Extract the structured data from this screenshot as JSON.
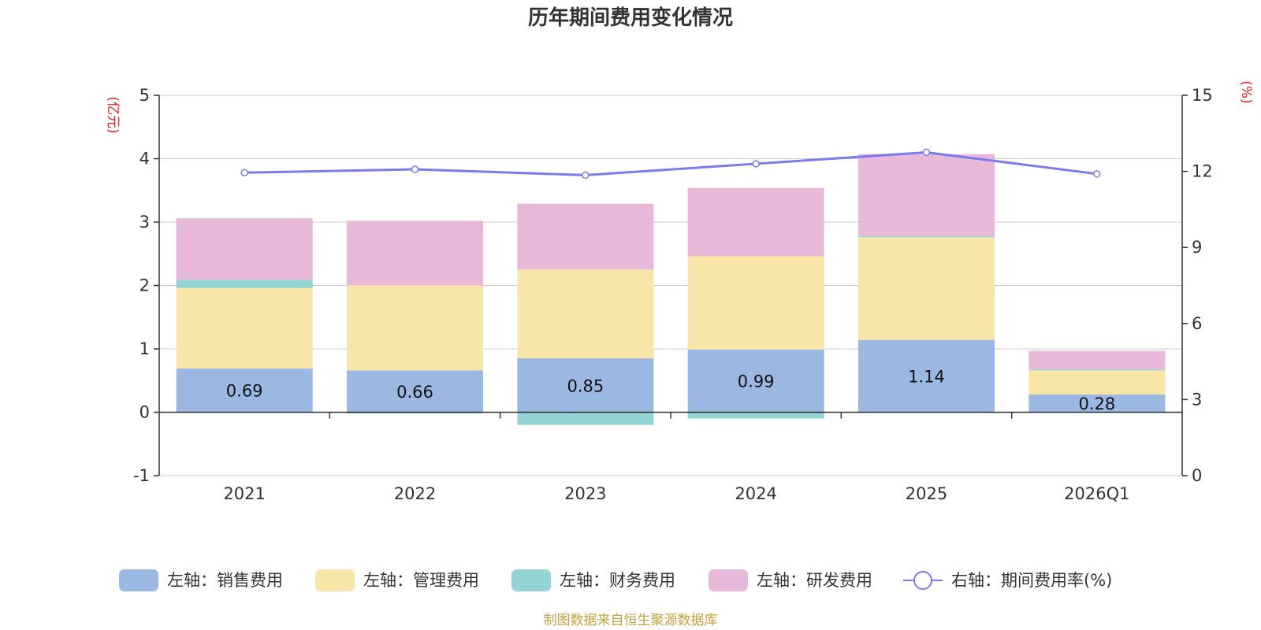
{
  "chart_data": {
    "type": "bar",
    "stacked": true,
    "title": "历年期间费用变化情况",
    "categories": [
      "2021",
      "2022",
      "2023",
      "2024",
      "2025",
      "2026Q1"
    ],
    "series": [
      {
        "name": "左轴：销售费用",
        "axis": "left",
        "color": "#9BB8E3",
        "values": [
          0.69,
          0.66,
          0.85,
          0.99,
          1.14,
          0.28
        ],
        "show_labels": true
      },
      {
        "name": "左轴：管理费用",
        "axis": "left",
        "color": "#F8E6A8",
        "values": [
          1.27,
          1.34,
          1.4,
          1.47,
          1.62,
          0.38
        ]
      },
      {
        "name": "左轴：财务费用",
        "axis": "left",
        "color": "#95D4D4",
        "values": [
          0.13,
          -0.02,
          -0.2,
          -0.1,
          0.02,
          0.02
        ]
      },
      {
        "name": "左轴：研发费用",
        "axis": "left",
        "color": "#E8B8D9",
        "values": [
          0.97,
          1.02,
          1.04,
          1.08,
          1.29,
          0.29
        ]
      },
      {
        "name": "右轴：期间费用率(%)",
        "axis": "right",
        "type": "line",
        "color": "#7B7BEE",
        "values": [
          11.95,
          12.08,
          11.85,
          12.3,
          12.75,
          11.9
        ]
      }
    ],
    "y_left": {
      "label": "(亿元)",
      "ylim": [
        -1,
        5
      ],
      "ticks": [
        "-1",
        "0",
        "1",
        "2",
        "3",
        "4",
        "5"
      ]
    },
    "y_right": {
      "label": "(%)",
      "ylim": [
        0,
        15
      ],
      "ticks": [
        "0",
        "3",
        "6",
        "9",
        "12",
        "15"
      ]
    },
    "grid": true,
    "legend_position": "bottom",
    "source": "制图数据来自恒生聚源数据库",
    "colors": {
      "axis_unit": "#E02020",
      "source": "#C8A040",
      "axis": "#333333",
      "grid": "#CCCCCC"
    }
  }
}
